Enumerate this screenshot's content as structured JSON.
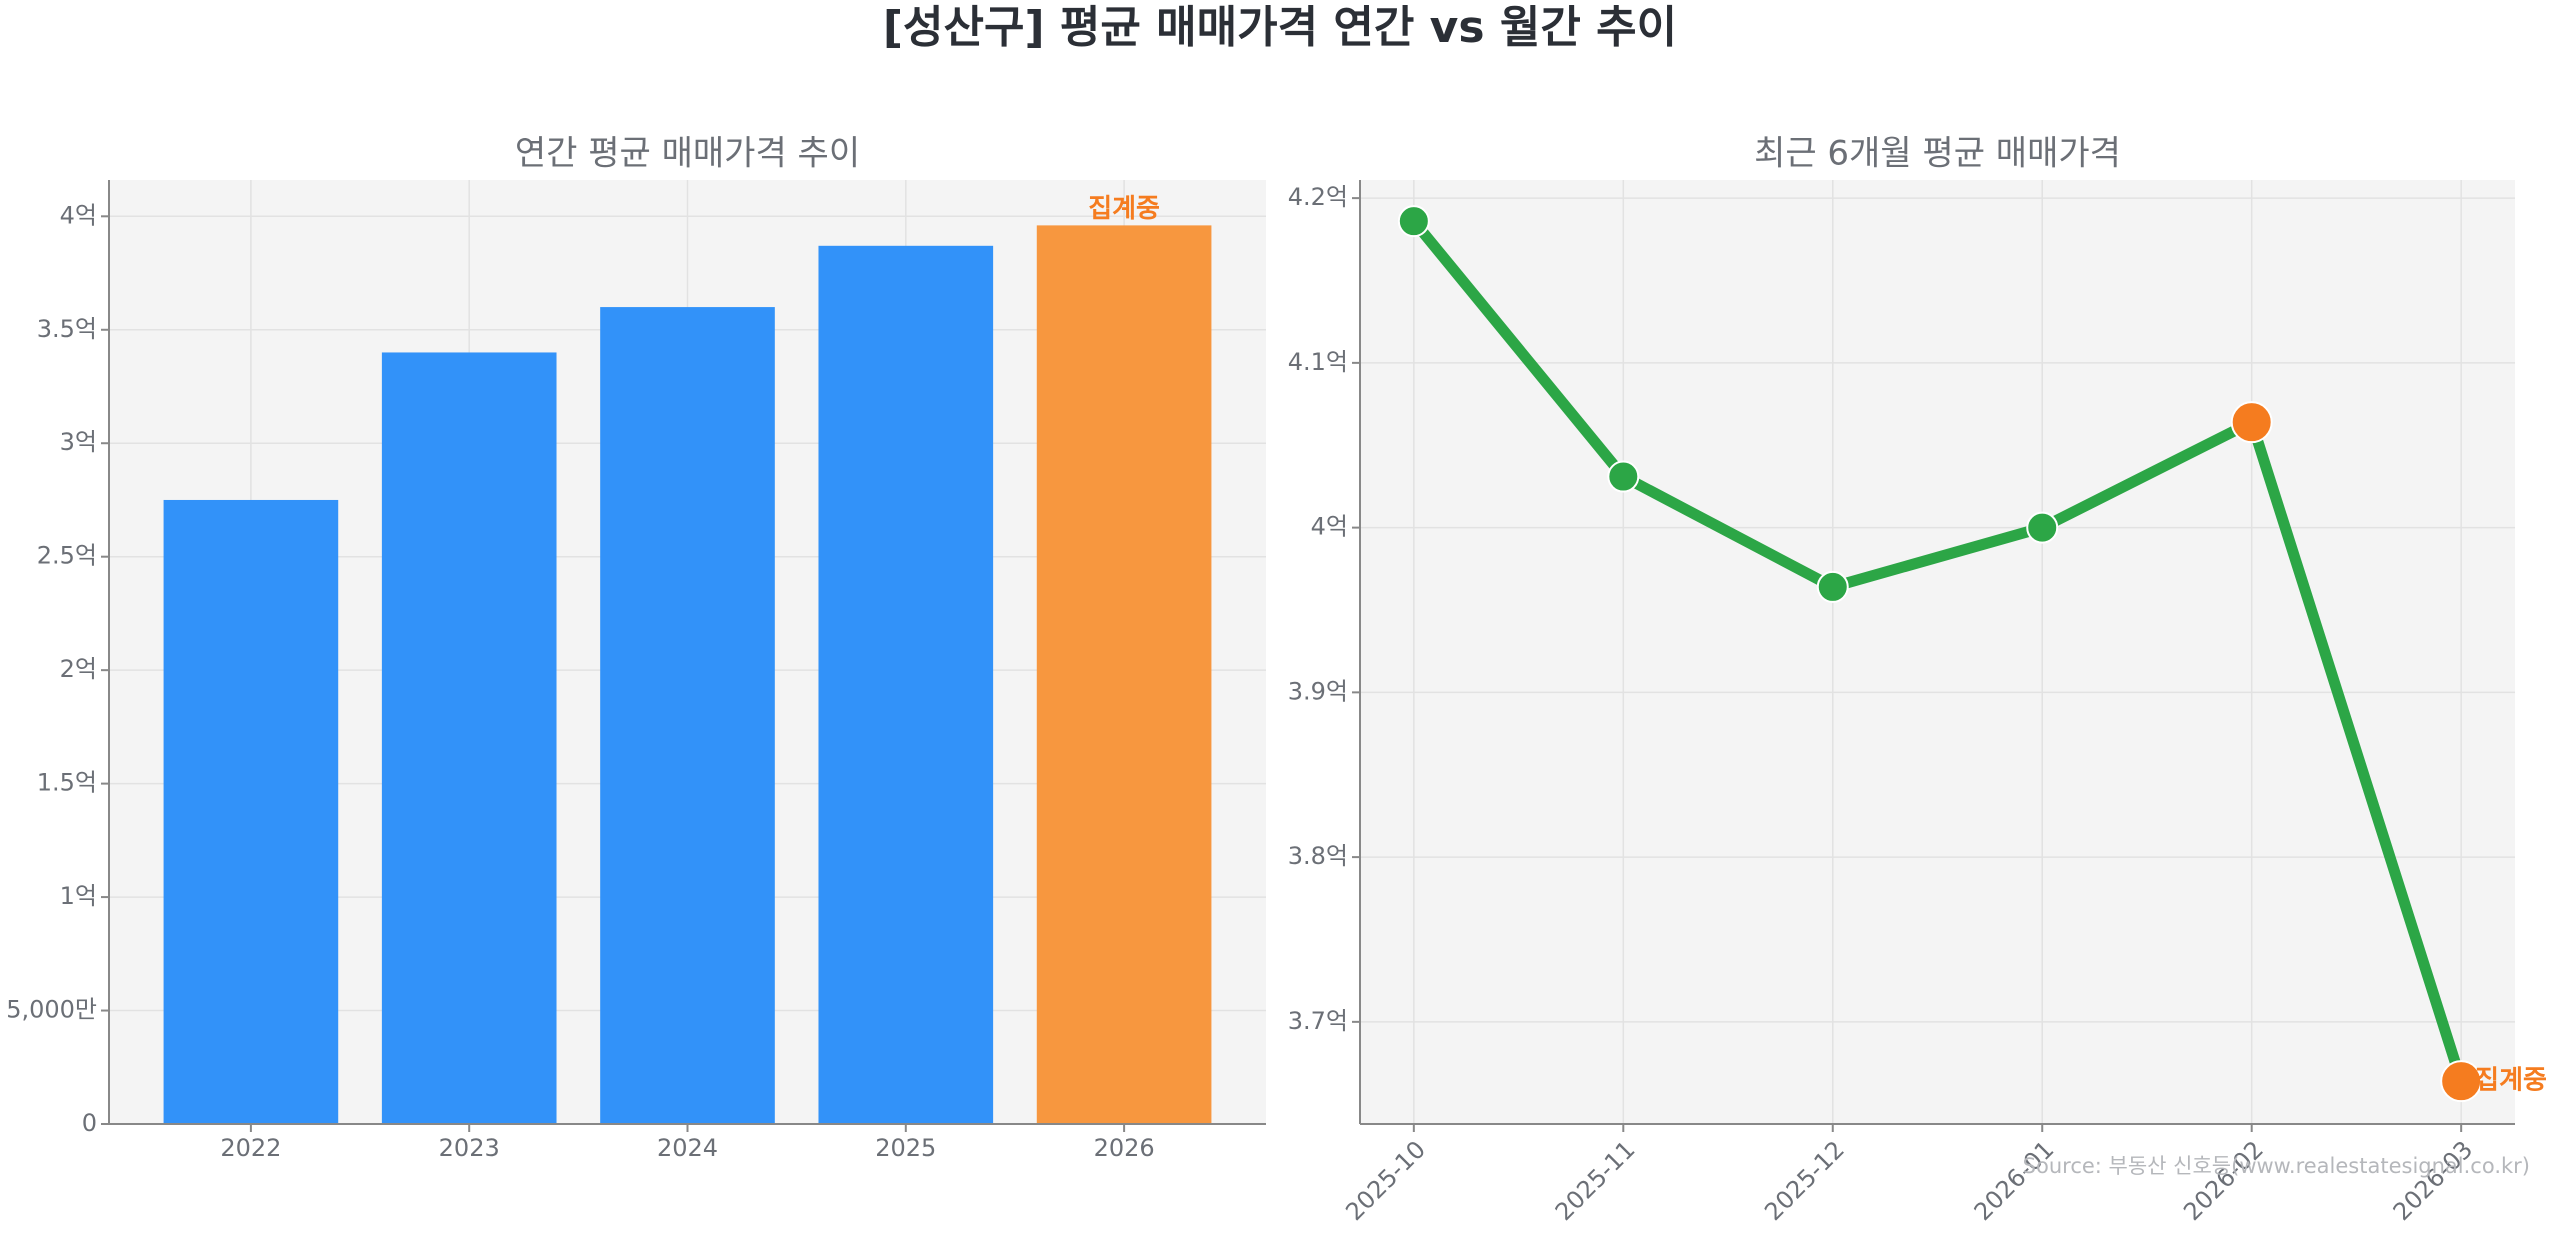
{
  "title": "[성산구] 평균 매매가격 연간 vs 월간 추이",
  "source": "Source: 부동산 신호등(www.realestatesignal.co.kr)",
  "chart_data": [
    {
      "type": "bar",
      "title": "연간 평균 매매가격 추이",
      "categories": [
        "2022",
        "2023",
        "2024",
        "2025",
        "2026"
      ],
      "values": [
        2.75,
        3.4,
        3.6,
        3.87,
        3.96
      ],
      "colors": [
        "#3292f9",
        "#3292f9",
        "#3292f9",
        "#3292f9",
        "#f7973f"
      ],
      "ylim": [
        0,
        4.16
      ],
      "yticks": [
        0,
        {
          "value": 0.5,
          "label": "5,000만"
        },
        {
          "value": 1,
          "label": "1억"
        },
        {
          "value": 1.5,
          "label": "1.5억"
        },
        {
          "value": 2,
          "label": "2억"
        },
        {
          "value": 2.5,
          "label": "2.5억"
        },
        {
          "value": 3,
          "label": "3억"
        },
        {
          "value": 3.5,
          "label": "3.5억"
        },
        {
          "value": 4,
          "label": "4억"
        }
      ],
      "grid": true,
      "annotations": [
        {
          "text": "집계중",
          "category": "2026",
          "color": "#f57c1f"
        }
      ]
    },
    {
      "type": "line",
      "title": "최근 6개월 평균 매매가격",
      "categories": [
        "2025-10",
        "2025-11",
        "2025-12",
        "2026-01",
        "2026-02",
        "2026-03"
      ],
      "values": [
        4.186,
        4.031,
        3.964,
        4.0,
        4.064,
        3.664
      ],
      "color": "#2ca646",
      "marker_colors": [
        "#2ca646",
        "#2ca646",
        "#2ca646",
        "#2ca646",
        "#f57c1f",
        "#f57c1f"
      ],
      "ylim": [
        3.638,
        4.211
      ],
      "yticks": [
        {
          "value": 3.7,
          "label": "3.7억"
        },
        {
          "value": 3.8,
          "label": "3.8억"
        },
        {
          "value": 3.9,
          "label": "3.9억"
        },
        {
          "value": 4,
          "label": "4억"
        },
        {
          "value": 4.1,
          "label": "4.1억"
        },
        {
          "value": 4.2,
          "label": "4.2억"
        }
      ],
      "grid": true,
      "annotations": [
        {
          "text": "집계중",
          "category": "2026-03",
          "color": "#f57c1f"
        }
      ]
    }
  ]
}
